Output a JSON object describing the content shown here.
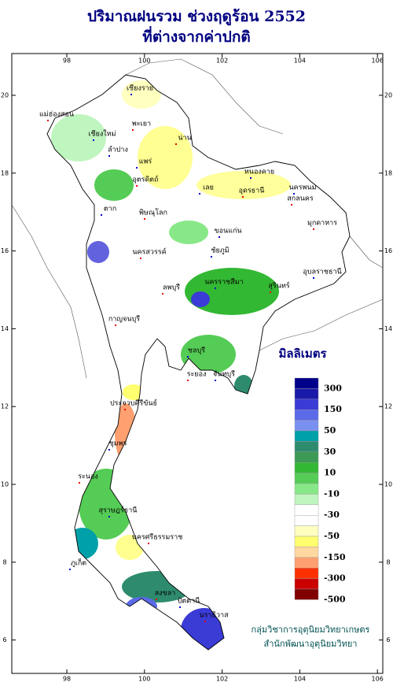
{
  "header": {
    "title": "ปริมาณฝนรวม ช่วงฤดูร้อน 2552",
    "subtitle": "ที่ต่างจากค่าปกติ"
  },
  "map": {
    "lon_ticks": [
      98,
      100,
      102,
      104,
      106
    ],
    "lat_ticks": [
      6,
      8,
      10,
      12,
      14,
      16,
      18,
      20
    ],
    "provinces": [
      "เชียงราย",
      "แม่ฮ่องสอน",
      "เชียงใหม่",
      "พะเยา",
      "ลำปาง",
      "น่าน",
      "แพร่",
      "อุตรดิตถ์",
      "ตาก",
      "พิษณุโลก",
      "หนองคาย",
      "อุดรธานี",
      "เลย",
      "สกลนคร",
      "นครพนม",
      "มุกดาหาร",
      "ขอนแก่น",
      "นครสวรรค์",
      "ชัยภูมิ",
      "ลพบุรี",
      "นครราชสีมา",
      "สุรินทร์",
      "อุบลราชธานี",
      "กาญจนบุรี",
      "ชลบุรี",
      "ระยอง",
      "จันทบุรี",
      "ประจวบคีรีขันธ์",
      "ชุมพร",
      "ระนอง",
      "สุราษฎร์ธานี",
      "นครศรีธรรมราช",
      "ภูเก็ต",
      "สงขลา",
      "ปัตตานี",
      "นราธิวาส"
    ]
  },
  "legend": {
    "title": "มิลลิเมตร",
    "labels": [
      300,
      150,
      50,
      30,
      10,
      -10,
      -30,
      -50,
      -150,
      -300,
      -500
    ],
    "colors": [
      "#00008b",
      "#1a1aa8",
      "#3b3bd6",
      "#5a6ae8",
      "#7a90f0",
      "#00a0a8",
      "#2e8b6e",
      "#3c9a55",
      "#33b833",
      "#55cc55",
      "#88e888",
      "#bff5bf",
      "#ffffff",
      "#ffffff",
      "#ffffc0",
      "#ffff70",
      "#ffd8a0",
      "#ffa070",
      "#ff3000",
      "#cc0000",
      "#800000"
    ]
  },
  "footer": {
    "line1": "กลุ่มวิชาการอุตุนิยมวิทยาเกษตร",
    "line2": "สำนักพัฒนาอุตุนิยมวิทยา"
  }
}
